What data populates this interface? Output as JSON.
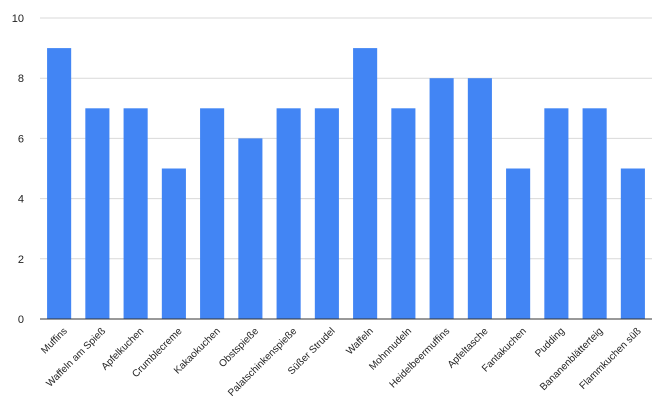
{
  "chart_data": {
    "type": "bar",
    "categories": [
      "Muffins",
      "Waffeln am Spieß",
      "Apfelkuchen",
      "Crumblecreme",
      "Kakaokuchen",
      "Obstspieße",
      "Palatschinkenspieße",
      "Süßer Strudel",
      "Waffeln",
      "Mohnnudeln",
      "Heidelbeermuffins",
      "Apfeltasche",
      "Fantakuchen",
      "Pudding",
      "Bananenblätterteig",
      "Flammkuchen süß"
    ],
    "values": [
      9,
      7,
      7,
      5,
      7,
      6,
      7,
      7,
      9,
      7,
      8,
      8,
      5,
      7,
      7,
      5
    ],
    "title": "",
    "xlabel": "",
    "ylabel": "",
    "ylim": [
      0,
      10
    ],
    "yticks": [
      "0",
      "2",
      "4",
      "6",
      "8",
      "10"
    ],
    "grid": true,
    "colors": {
      "bar": "#4285f4",
      "grid": "#d9d9d9",
      "axis": "#333333",
      "text": "#222222"
    }
  }
}
